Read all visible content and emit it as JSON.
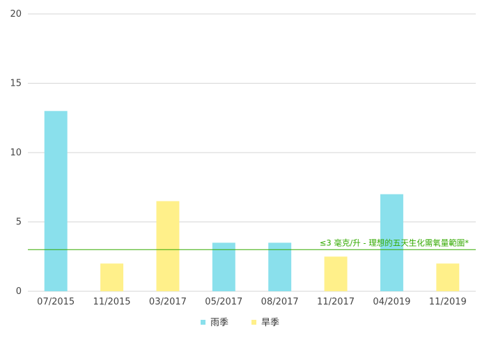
{
  "chart_data": {
    "type": "bar",
    "categories": [
      "07/2015",
      "11/2015",
      "03/2017",
      "05/2017",
      "08/2017",
      "11/2017",
      "04/2019",
      "11/2019"
    ],
    "values": [
      13,
      2,
      6.5,
      3.5,
      3.5,
      2.5,
      7,
      2
    ],
    "bar_season": [
      "雨季",
      "旱季",
      "旱季",
      "雨季",
      "雨季",
      "旱季",
      "雨季",
      "旱季"
    ],
    "series": [
      {
        "name": "雨季",
        "color": "#8ae0ec"
      },
      {
        "name": "旱季",
        "color": "#fff08a"
      }
    ],
    "ylim": [
      0,
      20
    ],
    "yticks": [
      0,
      5,
      10,
      15,
      20
    ],
    "grid": true,
    "legend_position": "bottom",
    "reference_line": {
      "value": 3,
      "label": "≤3 毫克/升 - 理想的五天生化需氧量範圍*",
      "color": "#33aa00"
    }
  }
}
